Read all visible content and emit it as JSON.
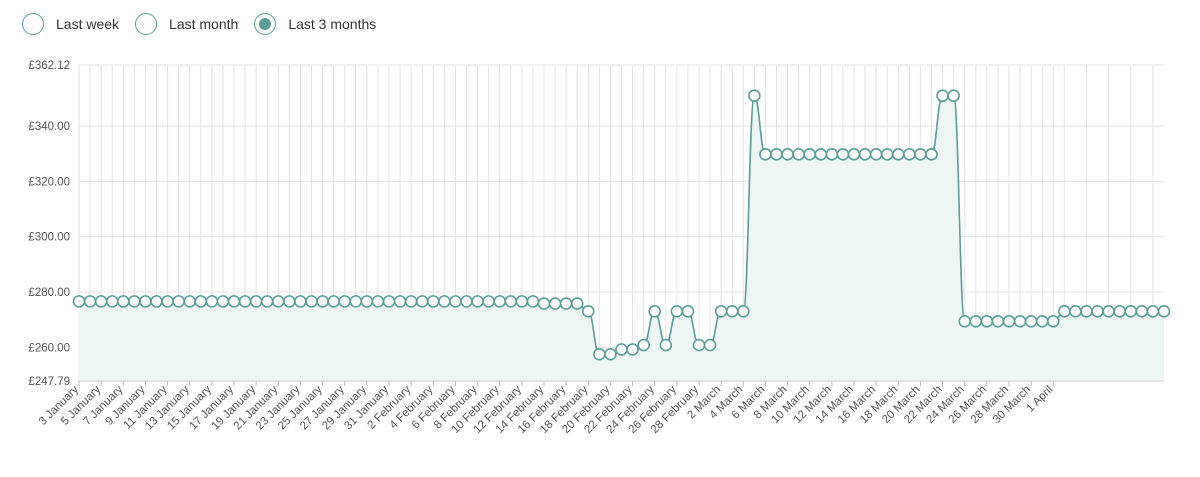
{
  "filters": {
    "options": [
      {
        "label": "Last week",
        "checked": false
      },
      {
        "label": "Last month",
        "checked": false
      },
      {
        "label": "Last 3 months",
        "checked": true
      }
    ]
  },
  "colors": {
    "line": "#5a9e98",
    "area": "#eef6f5",
    "grid": "#e4e4e4",
    "marker_fill": "#ffffff"
  },
  "chart_data": {
    "type": "area",
    "currency": "£",
    "yticks": [
      "£362.12",
      "£340.00",
      "£320.00",
      "£300.00",
      "£280.00",
      "£260.00",
      "£247.79"
    ],
    "ylim": [
      247.79,
      362.12
    ],
    "x_tick_labels": [
      "3 January",
      "5 January",
      "7 January",
      "9 January",
      "11 January",
      "13 January",
      "15 January",
      "17 January",
      "19 January",
      "21 January",
      "23 January",
      "25 January",
      "27 January",
      "29 January",
      "31 January",
      "2 February",
      "4 February",
      "6 February",
      "8 February",
      "10 February",
      "12 February",
      "14 February",
      "16 February",
      "18 February",
      "20 February",
      "22 February",
      "24 February",
      "26 February",
      "28 February",
      "2 March",
      "4 March",
      "6 March",
      "8 March",
      "10 March",
      "12 March",
      "14 March",
      "16 March",
      "18 March",
      "20 March",
      "22 March",
      "24 March",
      "26 March",
      "28 March",
      "30 March",
      "1 April"
    ],
    "values": [
      276.6,
      276.6,
      276.6,
      276.6,
      276.6,
      276.6,
      276.6,
      276.6,
      276.6,
      276.6,
      276.6,
      276.6,
      276.6,
      276.6,
      276.6,
      276.6,
      276.6,
      276.6,
      276.6,
      276.6,
      276.6,
      276.6,
      276.6,
      276.6,
      276.6,
      276.6,
      276.6,
      276.6,
      276.6,
      276.6,
      276.6,
      276.6,
      276.6,
      276.6,
      276.6,
      276.6,
      276.6,
      276.6,
      276.6,
      276.6,
      276.6,
      276.6,
      275.8,
      275.8,
      275.8,
      275.8,
      273.0,
      257.5,
      257.5,
      259.2,
      259.2,
      260.8,
      273.0,
      260.8,
      273.0,
      273.0,
      260.8,
      260.8,
      273.0,
      273.0,
      273.0,
      351.0,
      329.8,
      329.8,
      329.8,
      329.8,
      329.8,
      329.8,
      329.8,
      329.8,
      329.8,
      329.8,
      329.8,
      329.8,
      329.8,
      329.8,
      329.8,
      329.8,
      351.0,
      351.0,
      269.4,
      269.4,
      269.4,
      269.4,
      269.4,
      269.4,
      269.4,
      269.4,
      269.4,
      273.0,
      273.0,
      273.0,
      273.0,
      273.0,
      273.0,
      273.0,
      273.0,
      273.0,
      273.0
    ],
    "grid": true,
    "legend": "none"
  }
}
